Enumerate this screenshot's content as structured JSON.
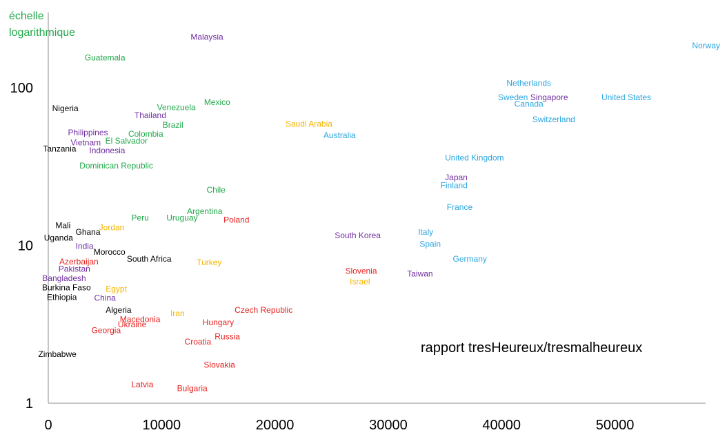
{
  "chart_data": {
    "type": "scatter",
    "ylabel": "échelle logarithmique",
    "ylabel_lines": [
      "échelle",
      "logarithmique"
    ],
    "ylabel_color": "#21a84a",
    "annotation": "rapport tresHeureux/tresmalheureux",
    "x_scale": "linear",
    "y_scale": "log",
    "xlim": [
      0,
      58000
    ],
    "ylim": [
      1,
      300
    ],
    "x_ticks": [
      "0",
      "10000",
      "20000",
      "30000",
      "40000",
      "50000"
    ],
    "x_tick_values": [
      0,
      10000,
      20000,
      30000,
      40000,
      50000
    ],
    "y_ticks": [
      "1",
      "10",
      "100"
    ],
    "y_tick_values": [
      1,
      10,
      100
    ],
    "grid": false,
    "group_colors": {
      "black": "#000000",
      "green": "#21a84a",
      "purple": "#7030a0",
      "orange": "#f5b400",
      "red": "#e8201e",
      "blue": "#2aa6e0"
    },
    "points": [
      {
        "label": "Malaysia",
        "x": 14000,
        "y": 210,
        "group": "purple"
      },
      {
        "label": "Guatemala",
        "x": 5000,
        "y": 155,
        "group": "green"
      },
      {
        "label": "Norway",
        "x": 57800,
        "y": 185,
        "group": "blue"
      },
      {
        "label": "Netherlands",
        "x": 42400,
        "y": 107,
        "group": "blue"
      },
      {
        "label": "Sweden",
        "x": 41000,
        "y": 87,
        "group": "blue"
      },
      {
        "label": "Singapore",
        "x": 44200,
        "y": 87,
        "group": "purple"
      },
      {
        "label": "United States",
        "x": 51000,
        "y": 87,
        "group": "blue"
      },
      {
        "label": "Canada",
        "x": 42400,
        "y": 79,
        "group": "blue"
      },
      {
        "label": "Switzerland",
        "x": 44600,
        "y": 63,
        "group": "blue"
      },
      {
        "label": "Mexico",
        "x": 14900,
        "y": 81,
        "group": "green"
      },
      {
        "label": "Venezuela",
        "x": 11300,
        "y": 75,
        "group": "green"
      },
      {
        "label": "Nigeria",
        "x": 1500,
        "y": 74,
        "group": "black"
      },
      {
        "label": "Thailand",
        "x": 9000,
        "y": 67,
        "group": "purple"
      },
      {
        "label": "Brazil",
        "x": 11000,
        "y": 58,
        "group": "green"
      },
      {
        "label": "Saudi Arabia",
        "x": 23000,
        "y": 59,
        "group": "orange"
      },
      {
        "label": "Philippines",
        "x": 3500,
        "y": 52,
        "group": "purple"
      },
      {
        "label": "Colombia",
        "x": 8600,
        "y": 51,
        "group": "green"
      },
      {
        "label": "Australia",
        "x": 25700,
        "y": 50,
        "group": "blue"
      },
      {
        "label": "El Salvador",
        "x": 6900,
        "y": 46,
        "group": "green"
      },
      {
        "label": "Vietnam",
        "x": 3300,
        "y": 45,
        "group": "purple"
      },
      {
        "label": "Tanzania",
        "x": 1000,
        "y": 41,
        "group": "black"
      },
      {
        "label": "Indonesia",
        "x": 5200,
        "y": 40,
        "group": "purple"
      },
      {
        "label": "United Kingdom",
        "x": 37600,
        "y": 36,
        "group": "blue"
      },
      {
        "label": "Dominican Republic",
        "x": 6000,
        "y": 32,
        "group": "green"
      },
      {
        "label": "Japan",
        "x": 36000,
        "y": 27,
        "group": "purple"
      },
      {
        "label": "Finland",
        "x": 35800,
        "y": 24,
        "group": "blue"
      },
      {
        "label": "Chile",
        "x": 14800,
        "y": 22.5,
        "group": "green"
      },
      {
        "label": "France",
        "x": 36300,
        "y": 17.5,
        "group": "blue"
      },
      {
        "label": "Argentina",
        "x": 13800,
        "y": 16.5,
        "group": "green"
      },
      {
        "label": "Peru",
        "x": 8100,
        "y": 15,
        "group": "green"
      },
      {
        "label": "Uruguay",
        "x": 11800,
        "y": 15,
        "group": "green"
      },
      {
        "label": "Poland",
        "x": 16600,
        "y": 14.5,
        "group": "red"
      },
      {
        "label": "Mali",
        "x": 1300,
        "y": 13.4,
        "group": "black"
      },
      {
        "label": "Jordan",
        "x": 5600,
        "y": 13,
        "group": "orange"
      },
      {
        "label": "Ghana",
        "x": 3500,
        "y": 12.2,
        "group": "black"
      },
      {
        "label": "Italy",
        "x": 33300,
        "y": 12.2,
        "group": "blue"
      },
      {
        "label": "South Korea",
        "x": 27300,
        "y": 11.6,
        "group": "purple"
      },
      {
        "label": "Uganda",
        "x": 900,
        "y": 11.2,
        "group": "black"
      },
      {
        "label": "Spain",
        "x": 33700,
        "y": 10.2,
        "group": "blue"
      },
      {
        "label": "India",
        "x": 3200,
        "y": 9.9,
        "group": "purple"
      },
      {
        "label": "Morocco",
        "x": 5400,
        "y": 9.1,
        "group": "black"
      },
      {
        "label": "Germany",
        "x": 37200,
        "y": 8.2,
        "group": "blue"
      },
      {
        "label": "South Africa",
        "x": 8900,
        "y": 8.2,
        "group": "black"
      },
      {
        "label": "Azerbaijan",
        "x": 2700,
        "y": 7.9,
        "group": "red"
      },
      {
        "label": "Turkey",
        "x": 14200,
        "y": 7.8,
        "group": "orange"
      },
      {
        "label": "Pakistan",
        "x": 2300,
        "y": 7.1,
        "group": "purple"
      },
      {
        "label": "Slovenia",
        "x": 27600,
        "y": 6.9,
        "group": "red"
      },
      {
        "label": "Taiwan",
        "x": 32800,
        "y": 6.6,
        "group": "purple"
      },
      {
        "label": "Bangladesh",
        "x": 1400,
        "y": 6.2,
        "group": "purple"
      },
      {
        "label": "Israel",
        "x": 27500,
        "y": 5.9,
        "group": "orange"
      },
      {
        "label": "Burkina Faso",
        "x": 1600,
        "y": 5.4,
        "group": "black"
      },
      {
        "label": "Egypt",
        "x": 6000,
        "y": 5.3,
        "group": "orange"
      },
      {
        "label": "Ethiopia",
        "x": 1200,
        "y": 4.7,
        "group": "black"
      },
      {
        "label": "China",
        "x": 5000,
        "y": 4.65,
        "group": "purple"
      },
      {
        "label": "Algeria",
        "x": 6200,
        "y": 3.9,
        "group": "black"
      },
      {
        "label": "Czech Republic",
        "x": 19000,
        "y": 3.9,
        "group": "red"
      },
      {
        "label": "Iran",
        "x": 11400,
        "y": 3.7,
        "group": "orange"
      },
      {
        "label": "Macedonia",
        "x": 8100,
        "y": 3.4,
        "group": "red"
      },
      {
        "label": "Hungary",
        "x": 15000,
        "y": 3.25,
        "group": "red"
      },
      {
        "label": "Ukraine",
        "x": 7400,
        "y": 3.15,
        "group": "red"
      },
      {
        "label": "Georgia",
        "x": 5100,
        "y": 2.9,
        "group": "red"
      },
      {
        "label": "Russia",
        "x": 15800,
        "y": 2.65,
        "group": "red"
      },
      {
        "label": "Croatia",
        "x": 13200,
        "y": 2.45,
        "group": "red"
      },
      {
        "label": "Zimbabwe",
        "x": 800,
        "y": 2.05,
        "group": "black"
      },
      {
        "label": "Slovakia",
        "x": 15100,
        "y": 1.75,
        "group": "red"
      },
      {
        "label": "Latvia",
        "x": 8300,
        "y": 1.31,
        "group": "red"
      },
      {
        "label": "Bulgaria",
        "x": 12700,
        "y": 1.24,
        "group": "red"
      }
    ]
  }
}
